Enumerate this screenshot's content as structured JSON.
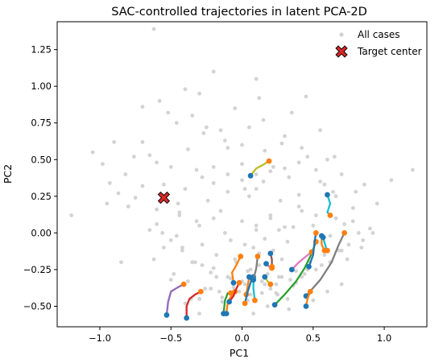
{
  "chart_data": {
    "type": "scatter",
    "title": "SAC-controlled trajectories in latent PCA-2D",
    "xlabel": "PC1",
    "ylabel": "PC2",
    "xlim": [
      -1.3,
      1.3
    ],
    "ylim": [
      -0.64,
      1.44
    ],
    "xticks": [
      -1.0,
      -0.5,
      0.0,
      0.5,
      1.0
    ],
    "xtick_labels": [
      "−1.0",
      "−0.5",
      "0.0",
      "0.5",
      "1.0"
    ],
    "yticks": [
      -0.5,
      -0.25,
      0.0,
      0.25,
      0.5,
      0.75,
      1.0,
      1.25
    ],
    "ytick_labels": [
      "−0.50",
      "−0.25",
      "0.00",
      "0.25",
      "0.50",
      "0.75",
      "1.00",
      "1.25"
    ],
    "grid": false,
    "legend": {
      "placement": "top-right",
      "entries": [
        {
          "label": "All cases",
          "marker": "dot",
          "color": "#d3d3d3"
        },
        {
          "label": "Target center",
          "marker": "x",
          "color": "#d62728"
        }
      ]
    },
    "target_center": {
      "name": "Target center",
      "x": -0.55,
      "y": 0.24,
      "color": "#d62728"
    },
    "background_points": {
      "name": "All cases",
      "color": "#d3d3d3",
      "x": [
        -1.05,
        -0.98,
        -0.93,
        -0.87,
        -0.82,
        -0.76,
        -0.7,
        -0.65,
        -0.6,
        -0.55,
        -0.5,
        -0.44,
        -0.38,
        -0.32,
        -0.27,
        -0.2,
        -0.15,
        -0.1,
        -0.05,
        0.0,
        0.05,
        0.1,
        0.16,
        0.22,
        0.28,
        0.33,
        0.4,
        0.46,
        0.52,
        0.58,
        0.64,
        0.7,
        0.78,
        0.86,
        0.95,
        1.05,
        1.2,
        -1.2,
        -0.62,
        -0.52,
        -0.3,
        0.12,
        0.45,
        -0.58,
        -0.46,
        -0.35,
        -0.25,
        -0.12,
        0.0,
        0.15,
        0.3,
        0.42,
        0.55,
        0.65,
        0.8,
        -0.7,
        -0.4,
        -0.2,
        0.1,
        0.35,
        0.6,
        0.9,
        -0.9,
        -0.3,
        0.0,
        0.25,
        0.7,
        -0.45,
        -0.15,
        0.05,
        0.2,
        0.4,
        0.5,
        -0.33,
        -0.22,
        -0.08,
        0.02,
        0.12,
        0.18,
        0.28,
        0.38,
        -0.6,
        -0.5,
        -0.42,
        -0.28,
        -0.18,
        -0.05,
        0.08,
        0.22,
        0.32,
        0.48,
        0.58,
        0.75,
        0.85,
        -0.8,
        -0.65,
        -0.55,
        -0.35,
        -0.2,
        -0.1,
        0.04,
        0.14,
        0.26,
        0.36,
        0.46,
        0.56,
        0.68,
        -0.48,
        -0.38,
        -0.26,
        -0.16,
        -0.06,
        0.06,
        0.16,
        0.24,
        0.34,
        0.44,
        -0.7,
        -0.56,
        -0.44,
        -0.3,
        -0.12,
        0.0,
        0.1,
        0.2,
        0.3,
        0.42,
        0.62,
        0.72,
        0.82,
        0.92,
        -0.95,
        -0.75,
        -0.6,
        -0.4,
        -0.24,
        -0.1,
        0.02,
        0.15,
        0.27,
        0.4,
        0.52,
        0.66,
        0.78,
        -0.85,
        -0.5,
        -0.36,
        -0.14,
        0.08,
        0.18,
        0.33,
        0.5,
        0.6,
        0.7,
        -0.62,
        -0.42,
        -0.28,
        -0.18,
        -0.04,
        0.06,
        0.12,
        0.2,
        0.28,
        0.38,
        0.48,
        -0.56,
        -0.46,
        -0.32,
        -0.2,
        -0.08,
        0.02,
        0.1,
        0.16,
        0.26,
        0.36,
        -0.4,
        -0.3,
        -0.22,
        -0.14,
        -0.02,
        0.04,
        0.14,
        0.24,
        0.32,
        0.42,
        0.52,
        0.62,
        0.74,
        0.84,
        -0.28,
        -0.2,
        -0.1,
        0.0,
        0.1,
        0.2,
        0.3,
        0.55,
        0.66
      ],
      "y": [
        0.55,
        0.47,
        0.34,
        0.27,
        0.4,
        0.52,
        0.62,
        0.53,
        0.48,
        0.33,
        0.45,
        0.12,
        0.57,
        0.43,
        0.68,
        0.34,
        0.7,
        0.58,
        0.85,
        0.47,
        0.72,
        0.4,
        0.56,
        0.45,
        0.61,
        0.38,
        0.48,
        0.52,
        0.43,
        0.33,
        0.28,
        0.4,
        0.17,
        0.33,
        0.2,
        0.36,
        0.43,
        0.12,
        1.39,
        0.82,
        0.95,
        0.92,
        0.93,
        0.9,
        0.75,
        0.8,
        0.72,
        0.63,
        0.6,
        0.77,
        0.66,
        0.58,
        0.7,
        0.52,
        0.28,
        0.86,
        0.98,
        1.1,
        1.05,
        0.82,
        0.5,
        0.03,
        0.62,
        -0.55,
        -0.33,
        -0.42,
        -0.12,
        0.2,
        0.15,
        0.25,
        0.1,
        0.18,
        0.05,
        -0.2,
        -0.27,
        -0.31,
        -0.35,
        -0.22,
        -0.28,
        -0.18,
        -0.26,
        0.06,
        -0.05,
        -0.12,
        -0.08,
        -0.15,
        -0.18,
        -0.1,
        -0.12,
        -0.06,
        -0.2,
        -0.15,
        -0.08,
        -0.05,
        0.18,
        0.02,
        -0.1,
        -0.2,
        -0.24,
        -0.3,
        -0.26,
        -0.33,
        -0.3,
        -0.36,
        -0.25,
        -0.22,
        -0.12,
        -0.28,
        -0.33,
        -0.38,
        -0.4,
        -0.37,
        -0.42,
        -0.35,
        -0.41,
        -0.32,
        -0.28,
        0.32,
        0.26,
        0.14,
        0.05,
        0.0,
        0.08,
        0.02,
        0.12,
        0.04,
        0.15,
        -0.02,
        0.06,
        0.0,
        0.0,
        0.2,
        0.24,
        0.16,
        0.3,
        0.22,
        0.28,
        0.3,
        0.35,
        0.22,
        0.26,
        0.12,
        0.1,
        0.08,
        -0.2,
        -0.32,
        -0.45,
        -0.47,
        -0.55,
        -0.5,
        -0.52,
        -0.46,
        -0.4,
        -0.35,
        -0.18,
        -0.1,
        -0.22,
        -0.3,
        -0.2,
        -0.25,
        -0.14,
        -0.38,
        -0.3,
        -0.34,
        -0.2,
        0.0,
        -0.02,
        0.08,
        0.1,
        -0.05,
        -0.08,
        0.05,
        -0.04,
        0.02,
        0.04,
        -0.48,
        -0.45,
        -0.38,
        -0.44,
        -0.4,
        -0.46,
        -0.41,
        -0.35,
        -0.45,
        -0.3,
        -0.25,
        -0.2,
        -0.18,
        -0.1,
        0.38,
        0.45,
        0.4,
        0.36,
        0.3,
        0.42,
        0.44,
        0.35,
        0.25
      ]
    },
    "trajectories": [
      {
        "color": "#bcbd22",
        "x": [
          0.06,
          0.1,
          0.14,
          0.19
        ],
        "y": [
          0.39,
          0.44,
          0.46,
          0.49
        ]
      },
      {
        "color": "#17becf",
        "x": [
          0.6,
          0.62,
          0.6,
          0.62
        ],
        "y": [
          0.26,
          0.2,
          0.14,
          0.12
        ]
      },
      {
        "color": "#9467bd",
        "x": [
          -0.53,
          -0.52,
          -0.5,
          -0.45,
          -0.41
        ],
        "y": [
          -0.56,
          -0.47,
          -0.4,
          -0.37,
          -0.35
        ]
      },
      {
        "color": "#d62728",
        "x": [
          -0.39,
          -0.39,
          -0.37,
          -0.33,
          -0.29
        ],
        "y": [
          -0.58,
          -0.5,
          -0.45,
          -0.42,
          -0.4
        ]
      },
      {
        "color": "#2ca02c",
        "x": [
          -0.13,
          -0.12,
          -0.1,
          -0.08
        ],
        "y": [
          -0.55,
          -0.46,
          -0.41,
          -0.41
        ]
      },
      {
        "color": "#ff7f0e",
        "x": [
          -0.11,
          -0.1,
          -0.07,
          -0.05
        ],
        "y": [
          -0.55,
          -0.47,
          -0.42,
          -0.4
        ]
      },
      {
        "color": "#d62728",
        "x": [
          -0.09,
          -0.06,
          -0.04,
          -0.02
        ],
        "y": [
          -0.47,
          -0.43,
          -0.38,
          -0.34
        ]
      },
      {
        "color": "#ff7f0e",
        "x": [
          0.05,
          0.04,
          0.03
        ],
        "y": [
          -0.3,
          -0.36,
          -0.42
        ]
      },
      {
        "color": "#ff7f0e",
        "x": [
          -0.06,
          -0.07,
          -0.04,
          -0.01
        ],
        "y": [
          -0.34,
          -0.27,
          -0.22,
          -0.16
        ]
      },
      {
        "color": "#17becf",
        "x": [
          0.08,
          0.08,
          0.09
        ],
        "y": [
          -0.3,
          -0.38,
          -0.46
        ]
      },
      {
        "color": "#1f77b4",
        "x": [
          0.07,
          0.04,
          0.02
        ],
        "y": [
          -0.31,
          -0.4,
          -0.48
        ]
      },
      {
        "color": "#7f7f7f",
        "x": [
          0.08,
          0.1,
          0.11
        ],
        "y": [
          -0.32,
          -0.24,
          -0.16
        ]
      },
      {
        "color": "#8c564b",
        "x": [
          0.2,
          0.21,
          0.21
        ],
        "y": [
          -0.14,
          -0.18,
          -0.23
        ]
      },
      {
        "color": "#e377c2",
        "x": [
          0.17,
          0.19,
          0.21
        ],
        "y": [
          -0.21,
          -0.23,
          -0.24
        ]
      },
      {
        "color": "#bcbd22",
        "x": [
          0.16,
          0.18,
          0.2
        ],
        "y": [
          -0.3,
          -0.33,
          -0.35
        ]
      },
      {
        "color": "#2ca02c",
        "x": [
          0.23,
          0.3,
          0.38,
          0.44,
          0.49,
          0.52
        ],
        "y": [
          -0.49,
          -0.42,
          -0.33,
          -0.24,
          -0.14,
          -0.06
        ]
      },
      {
        "color": "#e377c2",
        "x": [
          0.35,
          0.4,
          0.45,
          0.49
        ],
        "y": [
          -0.25,
          -0.2,
          -0.16,
          -0.13
        ]
      },
      {
        "color": "#1f77b4",
        "x": [
          0.47,
          0.5,
          0.51,
          0.52
        ],
        "y": [
          -0.23,
          -0.15,
          -0.06,
          0.0
        ]
      },
      {
        "color": "#7f7f7f",
        "x": [
          0.45,
          0.55,
          0.63,
          0.68,
          0.72
        ],
        "y": [
          -0.43,
          -0.32,
          -0.2,
          -0.08,
          0.0
        ]
      },
      {
        "color": "#ff7f0e",
        "x": [
          0.45,
          0.46,
          0.48
        ],
        "y": [
          -0.5,
          -0.45,
          -0.4
        ]
      },
      {
        "color": "#ff7f0e",
        "x": [
          0.56,
          0.56,
          0.58
        ],
        "y": [
          -0.02,
          -0.08,
          -0.12
        ]
      },
      {
        "color": "#17becf",
        "x": [
          0.57,
          0.59,
          0.6
        ],
        "y": [
          -0.03,
          -0.1,
          -0.12
        ]
      }
    ]
  }
}
